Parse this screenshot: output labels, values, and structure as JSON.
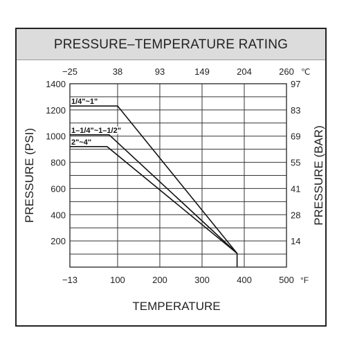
{
  "chart_data": {
    "type": "line",
    "title": "PRESSURE–TEMPERATURE RATING",
    "xlabel": "TEMPERATURE",
    "ylabel_left": "PRESSURE (PSI)",
    "ylabel_right": "PRESSURE (BAR)",
    "x_unit_top": "℃",
    "x_unit_bottom": "°F",
    "xlim": [
      -13,
      500
    ],
    "ylim": [
      0,
      1400
    ],
    "grid": true,
    "x_ticks_bottom": [
      {
        "value": -13,
        "label": "−13"
      },
      {
        "value": 100,
        "label": "100"
      },
      {
        "value": 200,
        "label": "200"
      },
      {
        "value": 300,
        "label": "300"
      },
      {
        "value": 400,
        "label": "400"
      },
      {
        "value": 500,
        "label": "500"
      }
    ],
    "x_ticks_top": [
      {
        "value": -13,
        "label": "−25"
      },
      {
        "value": 100,
        "label": "38"
      },
      {
        "value": 200,
        "label": "93"
      },
      {
        "value": 300,
        "label": "149"
      },
      {
        "value": 400,
        "label": "204"
      },
      {
        "value": 500,
        "label": "260"
      }
    ],
    "y_ticks_left": [
      {
        "value": 200,
        "label": "200"
      },
      {
        "value": 400,
        "label": "400"
      },
      {
        "value": 600,
        "label": "600"
      },
      {
        "value": 800,
        "label": "800"
      },
      {
        "value": 1000,
        "label": "1000"
      },
      {
        "value": 1200,
        "label": "1200"
      },
      {
        "value": 1400,
        "label": "1400"
      }
    ],
    "y_ticks_right": [
      {
        "value": 200,
        "label": "14"
      },
      {
        "value": 400,
        "label": "28"
      },
      {
        "value": 600,
        "label": "41"
      },
      {
        "value": 800,
        "label": "55"
      },
      {
        "value": 1000,
        "label": "69"
      },
      {
        "value": 1200,
        "label": "83"
      },
      {
        "value": 1400,
        "label": "97"
      }
    ],
    "series": [
      {
        "name": "1/4\"~1\"",
        "x": [
          -13,
          100,
          383,
          383
        ],
        "y": [
          1230,
          1230,
          105,
          0
        ]
      },
      {
        "name": "1–1/4\"~1–1/2\"",
        "x": [
          -13,
          80,
          383
        ],
        "y": [
          1010,
          1010,
          105
        ]
      },
      {
        "name": "2\"~4\"",
        "x": [
          -13,
          75,
          383
        ],
        "y": [
          920,
          920,
          105
        ]
      }
    ]
  }
}
